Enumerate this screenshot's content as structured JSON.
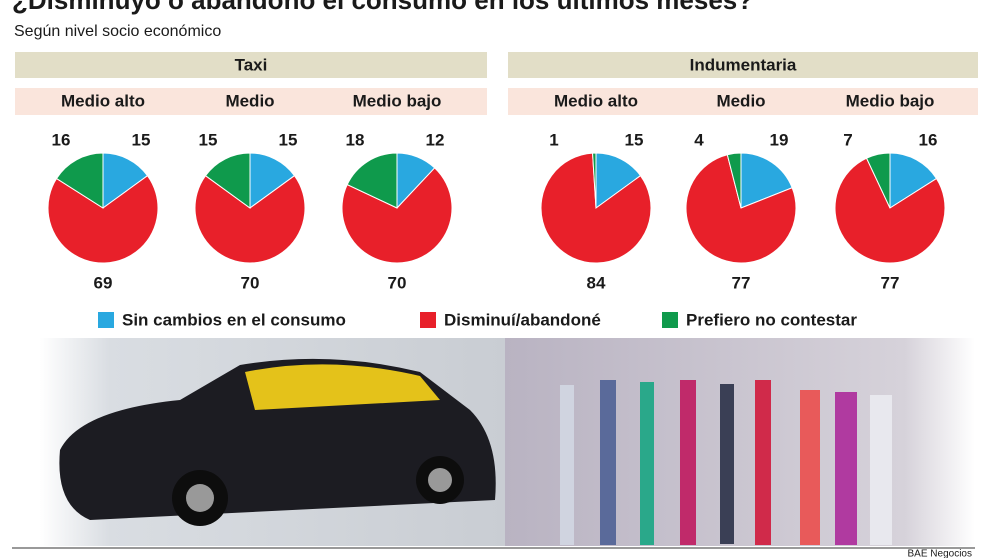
{
  "chart_data": {
    "type": "pie",
    "title": "¿Disminuyó o abandonó el consumo en los últimos meses?",
    "subtitle": "Según nivel socio económico",
    "categories": [
      "Sin cambios en el consumo",
      "Disminuí/abandoné",
      "Prefiero no contestar"
    ],
    "colors": [
      "#29a8e0",
      "#e8202a",
      "#0f9a4c"
    ],
    "groups": [
      {
        "label": "Taxi",
        "charts": [
          {
            "title": "Medio alto",
            "values": [
              15,
              69,
              16
            ]
          },
          {
            "title": "Medio",
            "values": [
              15,
              70,
              15
            ]
          },
          {
            "title": "Medio bajo",
            "values": [
              12,
              70,
              18
            ]
          }
        ]
      },
      {
        "label": "Indumentaria",
        "charts": [
          {
            "title": "Medio alto",
            "values": [
              15,
              84,
              1
            ]
          },
          {
            "title": "Medio",
            "values": [
              19,
              77,
              4
            ]
          },
          {
            "title": "Medio bajo",
            "values": [
              16,
              77,
              7
            ]
          }
        ]
      }
    ],
    "credit": "BAE Negocios"
  }
}
